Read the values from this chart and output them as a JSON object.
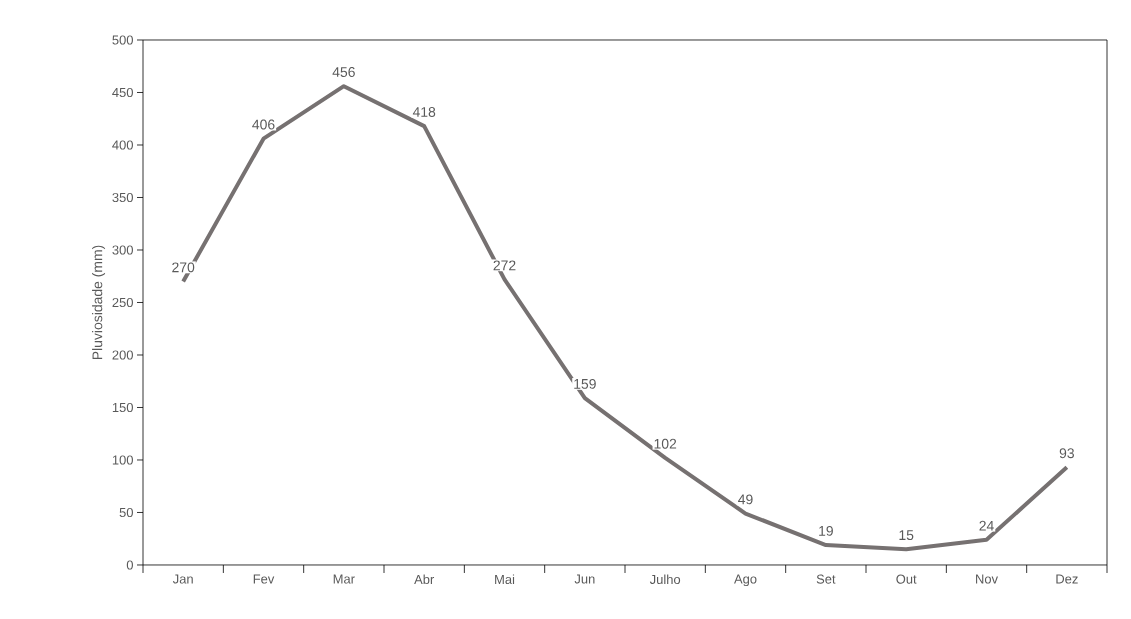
{
  "chart_data": {
    "type": "line",
    "ylabel": "Pluviosidade (mm)",
    "categories": [
      "Jan",
      "Fev",
      "Mar",
      "Abr",
      "Mai",
      "Jun",
      "Julho",
      "Ago",
      "Set",
      "Out",
      "Nov",
      "Dez"
    ],
    "values": [
      270,
      406,
      456,
      418,
      272,
      159,
      102,
      49,
      19,
      15,
      24,
      93
    ],
    "color": "#767171",
    "ylim": [
      0,
      500
    ],
    "yticks": [
      0,
      50,
      100,
      150,
      200,
      250,
      300,
      350,
      400,
      450,
      500
    ],
    "data_labels": true,
    "grid": false,
    "marker": "none",
    "line_style": "solid"
  }
}
